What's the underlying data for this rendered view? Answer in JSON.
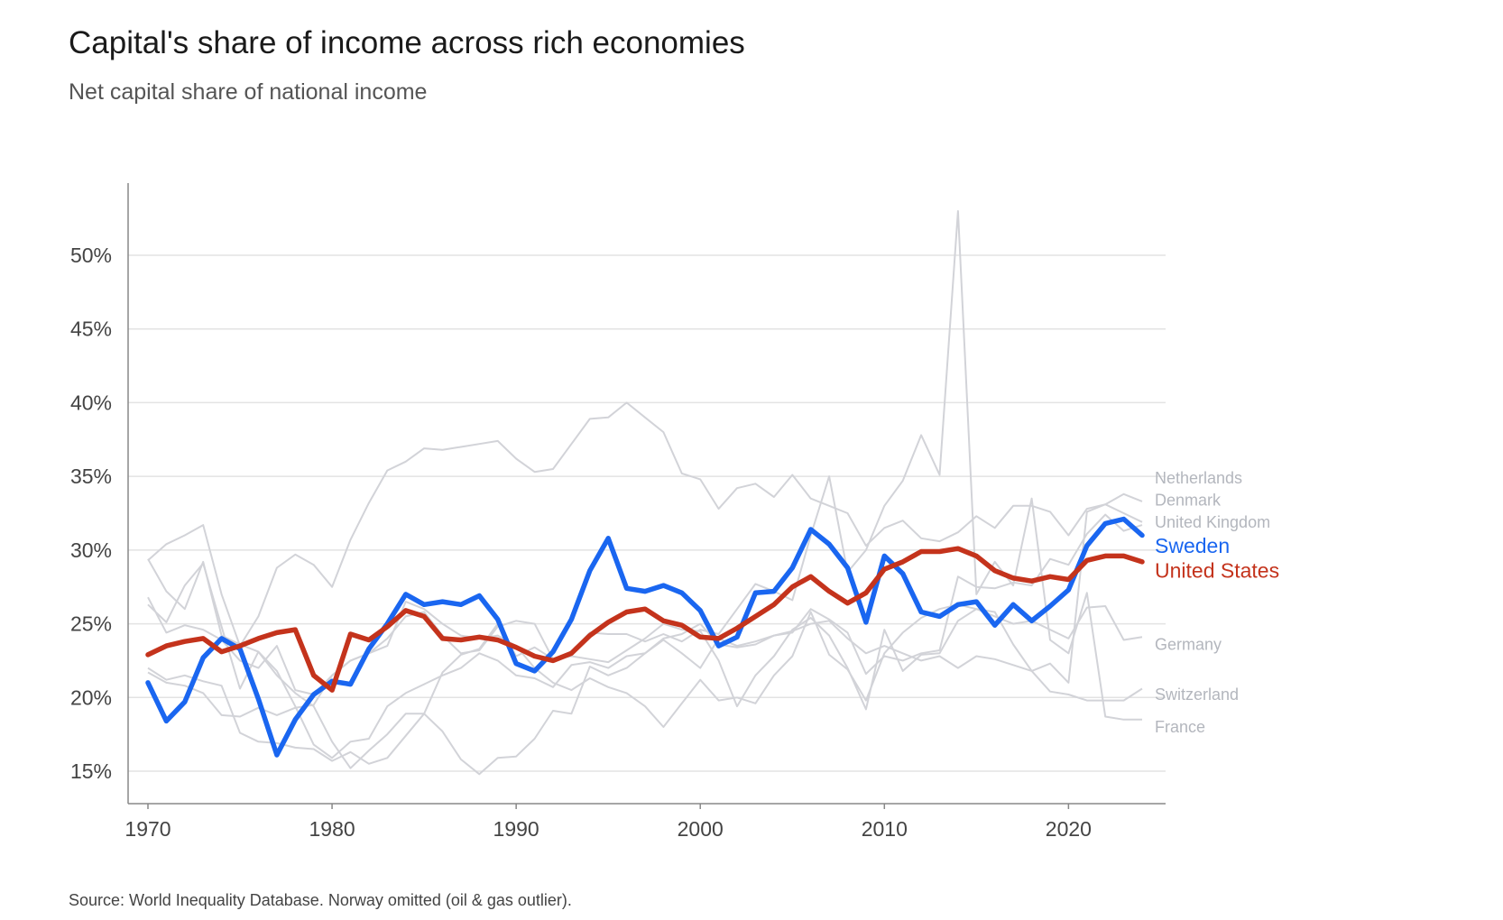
{
  "header": {
    "title": "Capital's share of income across rich economies",
    "subtitle": "Net capital share of national income"
  },
  "footer": {
    "source": "Source: World Inequality Database. Norway omitted (oil & gas outlier)."
  },
  "colors": {
    "highlight_sweden": "#1a66f0",
    "highlight_us": "#c4331c",
    "background_series": "#d2d3d8",
    "background_label": "#b3b6bd",
    "grid": "#e3e3e3",
    "axis": "#888888"
  },
  "chart_data": {
    "type": "line",
    "title": "Capital's share of income across rich economies",
    "subtitle": "Net capital share of national income",
    "xlabel": "",
    "ylabel": "",
    "xlim": [
      1970,
      2024
    ],
    "ylim": [
      13,
      55
    ],
    "x_ticks": [
      1970,
      1980,
      1990,
      2000,
      2010,
      2020
    ],
    "y_ticks": [
      15,
      20,
      25,
      30,
      35,
      40,
      45,
      50
    ],
    "y_tick_labels": [
      "15%",
      "20%",
      "25%",
      "30%",
      "35%",
      "40%",
      "45%",
      "50%"
    ],
    "grid": true,
    "legend": "direct labels at right end of lines",
    "x": [
      1970,
      1971,
      1972,
      1973,
      1974,
      1975,
      1976,
      1977,
      1978,
      1979,
      1980,
      1981,
      1982,
      1983,
      1984,
      1985,
      1986,
      1987,
      1988,
      1989,
      1990,
      1991,
      1992,
      1993,
      1994,
      1995,
      1996,
      1997,
      1998,
      1999,
      2000,
      2001,
      2002,
      2003,
      2004,
      2005,
      2006,
      2007,
      2008,
      2009,
      2010,
      2011,
      2012,
      2013,
      2014,
      2015,
      2016,
      2017,
      2018,
      2019,
      2020,
      2021,
      2022,
      2023,
      2024
    ],
    "series": [
      {
        "name": "Netherlands",
        "highlight": false,
        "values": [
          29.3,
          30.4,
          31.0,
          31.7,
          27.0,
          23.5,
          25.5,
          28.8,
          29.7,
          29.0,
          27.5,
          30.7,
          33.2,
          35.4,
          36.0,
          36.9,
          36.8,
          37.0,
          37.2,
          37.4,
          36.2,
          35.3,
          35.5,
          37.2,
          38.9,
          39.0,
          40.0,
          39.0,
          38.0,
          35.2,
          34.8,
          32.8,
          34.2,
          34.5,
          33.6,
          35.1,
          33.5,
          33.0,
          32.5,
          30.3,
          31.5,
          32.0,
          30.8,
          30.6,
          31.2,
          32.3,
          31.5,
          33.0,
          33.0,
          32.6,
          31.0,
          32.8,
          33.1,
          32.5,
          31.9
        ]
      },
      {
        "name": "Denmark",
        "highlight": false,
        "values": [
          29.4,
          27.2,
          26.0,
          29.2,
          24.2,
          23.6,
          23.1,
          21.5,
          20.3,
          19.4,
          17.0,
          15.2,
          16.4,
          17.5,
          18.9,
          18.9,
          17.7,
          15.8,
          14.8,
          15.9,
          16.0,
          17.2,
          19.1,
          18.9,
          22.1,
          21.5,
          22.0,
          23.0,
          23.9,
          23.0,
          22.0,
          24.0,
          23.5,
          23.8,
          24.2,
          24.5,
          25.0,
          25.2,
          24.0,
          23.0,
          23.5,
          23.0,
          22.5,
          22.8,
          22.0,
          22.8,
          22.6,
          22.2,
          21.8,
          22.3,
          21.0,
          32.6,
          33.1,
          33.8,
          33.3
        ]
      },
      {
        "name": "United Kingdom",
        "highlight": false,
        "values": [
          26.3,
          25.1,
          27.6,
          29.1,
          24.8,
          20.6,
          23.1,
          21.8,
          19.4,
          16.8,
          15.9,
          17.0,
          17.2,
          19.4,
          20.3,
          20.9,
          21.5,
          22.0,
          23.0,
          22.5,
          21.5,
          21.3,
          20.7,
          22.2,
          22.4,
          22.0,
          22.8,
          23.0,
          24.0,
          24.3,
          25.0,
          23.6,
          23.4,
          23.6,
          24.2,
          24.4,
          26.0,
          25.3,
          24.4,
          21.6,
          22.8,
          22.5,
          23.0,
          23.2,
          28.2,
          27.5,
          27.4,
          27.8,
          27.6,
          29.4,
          29.0,
          31.1,
          32.4,
          31.3,
          31.7
        ]
      },
      {
        "name": "Germany",
        "highlight": false,
        "values": [
          26.8,
          24.4,
          24.9,
          24.6,
          23.9,
          22.5,
          22.0,
          23.5,
          20.5,
          20.2,
          21.5,
          22.5,
          23.0,
          24.0,
          25.5,
          25.8,
          24.2,
          23.0,
          23.2,
          24.8,
          25.2,
          25.0,
          22.6,
          22.8,
          22.6,
          22.4,
          23.2,
          24.0,
          25.0,
          24.6,
          24.5,
          22.5,
          19.4,
          21.5,
          22.8,
          24.6,
          25.4,
          24.2,
          22.0,
          19.2,
          24.6,
          21.8,
          22.9,
          23.0,
          25.2,
          26.0,
          25.5,
          25.0,
          25.2,
          24.6,
          24.0,
          26.1,
          26.2,
          23.9,
          24.1
        ]
      },
      {
        "name": "Switzerland",
        "highlight": false,
        "values": [
          21.7,
          21.0,
          20.8,
          20.3,
          18.8,
          18.7,
          19.3,
          18.8,
          19.3,
          19.5,
          21.5,
          22.5,
          23.0,
          23.5,
          26.5,
          26.0,
          25.0,
          24.2,
          24.0,
          24.2,
          23.5,
          22.0,
          21.0,
          20.5,
          21.3,
          20.7,
          20.3,
          19.4,
          18.0,
          19.6,
          21.2,
          19.8,
          20.0,
          19.6,
          21.5,
          22.8,
          25.8,
          22.9,
          21.9,
          19.8,
          23.0,
          24.4,
          25.4,
          26.0,
          26.3,
          26.0,
          25.8,
          23.6,
          21.8,
          20.4,
          20.2,
          19.8,
          19.8,
          19.8,
          20.6
        ]
      },
      {
        "name": "France",
        "highlight": false,
        "values": [
          22.0,
          21.2,
          21.5,
          21.1,
          20.8,
          17.6,
          17.0,
          16.9,
          16.6,
          16.5,
          15.7,
          16.3,
          15.5,
          15.9,
          17.4,
          18.9,
          21.7,
          22.9,
          23.3,
          25.0,
          22.8,
          23.4,
          22.6,
          23.1,
          24.4,
          24.3,
          24.3,
          23.8,
          24.3,
          23.8,
          24.6,
          24.3,
          26.0,
          27.7,
          27.2,
          26.6,
          31.0,
          35.0,
          28.5,
          30.0,
          33.0,
          34.7,
          37.8,
          35.1,
          53.0,
          27.0,
          29.2,
          27.6,
          33.5,
          23.9,
          23.0,
          27.1,
          18.7,
          18.5,
          18.5
        ]
      },
      {
        "name": "Sweden",
        "highlight": true,
        "color": "#1a66f0",
        "values": [
          21.0,
          18.4,
          19.7,
          22.7,
          24.0,
          23.3,
          19.9,
          16.1,
          18.5,
          20.2,
          21.1,
          20.9,
          23.3,
          25.0,
          27.0,
          26.3,
          26.5,
          26.3,
          26.9,
          25.3,
          22.3,
          21.8,
          23.1,
          25.3,
          28.6,
          30.8,
          27.4,
          27.2,
          27.6,
          27.1,
          25.9,
          23.5,
          24.1,
          27.1,
          27.2,
          28.8,
          31.4,
          30.4,
          28.8,
          25.1,
          29.6,
          28.4,
          25.8,
          25.5,
          26.3,
          26.5,
          24.9,
          26.3,
          25.2,
          26.2,
          27.3,
          30.3,
          31.8,
          32.1,
          31.0
        ]
      },
      {
        "name": "United States",
        "highlight": true,
        "color": "#c4331c",
        "values": [
          22.9,
          23.5,
          23.8,
          24.0,
          23.1,
          23.5,
          24.0,
          24.4,
          24.6,
          21.5,
          20.5,
          24.3,
          23.9,
          24.8,
          25.9,
          25.5,
          24.0,
          23.9,
          24.1,
          23.9,
          23.4,
          22.8,
          22.5,
          23.0,
          24.2,
          25.1,
          25.8,
          26.0,
          25.2,
          24.9,
          24.1,
          24.0,
          24.7,
          25.5,
          26.3,
          27.5,
          28.2,
          27.2,
          26.4,
          27.1,
          28.7,
          29.2,
          29.9,
          29.9,
          30.1,
          29.6,
          28.6,
          28.1,
          27.9,
          28.2,
          28.0,
          29.3,
          29.6,
          29.6,
          29.2
        ]
      }
    ],
    "end_labels": [
      {
        "name": "Netherlands",
        "y": 34.9
      },
      {
        "name": "Denmark",
        "y": 33.4
      },
      {
        "name": "United Kingdom",
        "y": 31.9
      },
      {
        "name": "Sweden",
        "y": 30.3
      },
      {
        "name": "United States",
        "y": 28.6
      },
      {
        "name": "Germany",
        "y": 23.6
      },
      {
        "name": "Switzerland",
        "y": 20.2
      },
      {
        "name": "France",
        "y": 18.0
      }
    ]
  }
}
